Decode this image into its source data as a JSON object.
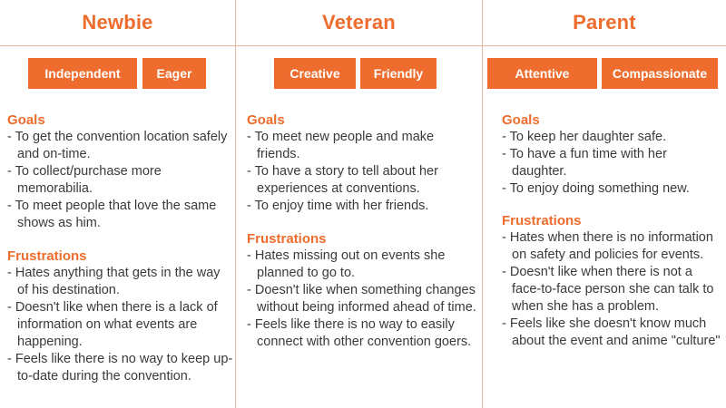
{
  "personas": [
    {
      "title": "Newbie",
      "tags": [
        "Independent",
        "Eager"
      ],
      "goals_heading": "Goals",
      "goals": [
        "To get the convention location safely and on-time.",
        "To collect/purchase more memorabilia.",
        "To meet people that love the same shows as him."
      ],
      "frustrations_heading": "Frustrations",
      "frustrations": [
        "Hates anything that gets in the way of his destination.",
        "Doesn't like when there is a lack of information on what events are happening.",
        "Feels like there is no way to keep up-to-date during the convention."
      ]
    },
    {
      "title": "Veteran",
      "tags": [
        "Creative",
        "Friendly"
      ],
      "goals_heading": "Goals",
      "goals": [
        "To meet new people and make friends.",
        "To have a story to tell about her experiences at conventions.",
        "To enjoy time with her friends."
      ],
      "frustrations_heading": "Frustrations",
      "frustrations": [
        "Hates missing out on events she planned to go to.",
        "Doesn't like when something changes without being informed ahead of time.",
        "Feels like there is no way to easily connect with other convention goers."
      ]
    },
    {
      "title": "Parent",
      "tags": [
        "Attentive",
        "Compassionate"
      ],
      "goals_heading": "Goals",
      "goals": [
        "To keep her daughter safe.",
        "To have a fun time with her daughter.",
        "To enjoy doing something new."
      ],
      "frustrations_heading": "Frustrations",
      "frustrations": [
        "Hates when there is no information on safety and policies for events.",
        "Doesn't like when there is not a face-to-face person she can talk to when she has a problem.",
        "Feels like she doesn't know much about the event and anime \"culture\""
      ]
    }
  ],
  "colors": {
    "accent": "#ee6c2d",
    "text": "#3a3a3a",
    "divider": "#e6b8a0"
  }
}
